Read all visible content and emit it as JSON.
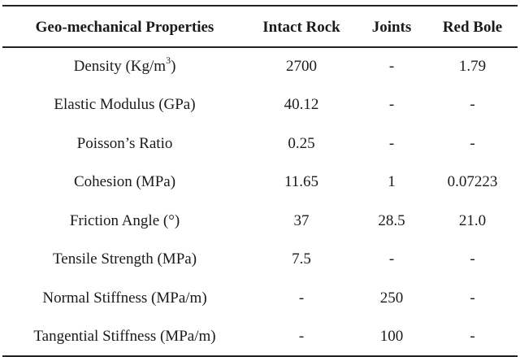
{
  "table": {
    "headers": [
      "Geo-mechanical Properties",
      "Intact Rock",
      "Joints",
      "Red Bole"
    ],
    "rows": [
      {
        "property": "Density (Kg/m",
        "property_sup": "3",
        "property_suffix": ")",
        "intact_rock": "2700",
        "joints": "-",
        "red_bole": "1.79"
      },
      {
        "property": "Elastic Modulus (GPa)",
        "intact_rock": "40.12",
        "joints": "-",
        "red_bole": "-"
      },
      {
        "property": "Poisson’s Ratio",
        "intact_rock": "0.25",
        "joints": "-",
        "red_bole": "-"
      },
      {
        "property": "Cohesion (MPa)",
        "intact_rock": "11.65",
        "joints": "1",
        "red_bole": "0.07223"
      },
      {
        "property": "Friction Angle (°)",
        "intact_rock": "37",
        "joints": "28.5",
        "red_bole": "21.0"
      },
      {
        "property": "Tensile Strength (MPa)",
        "intact_rock": "7.5",
        "joints": "-",
        "red_bole": "-"
      },
      {
        "property": "Normal Stiffness (MPa/m)",
        "intact_rock": "-",
        "joints": "250",
        "red_bole": "-"
      },
      {
        "property": "Tangential Stiffness (MPa/m)",
        "intact_rock": "-",
        "joints": "100",
        "red_bole": "-"
      }
    ]
  }
}
